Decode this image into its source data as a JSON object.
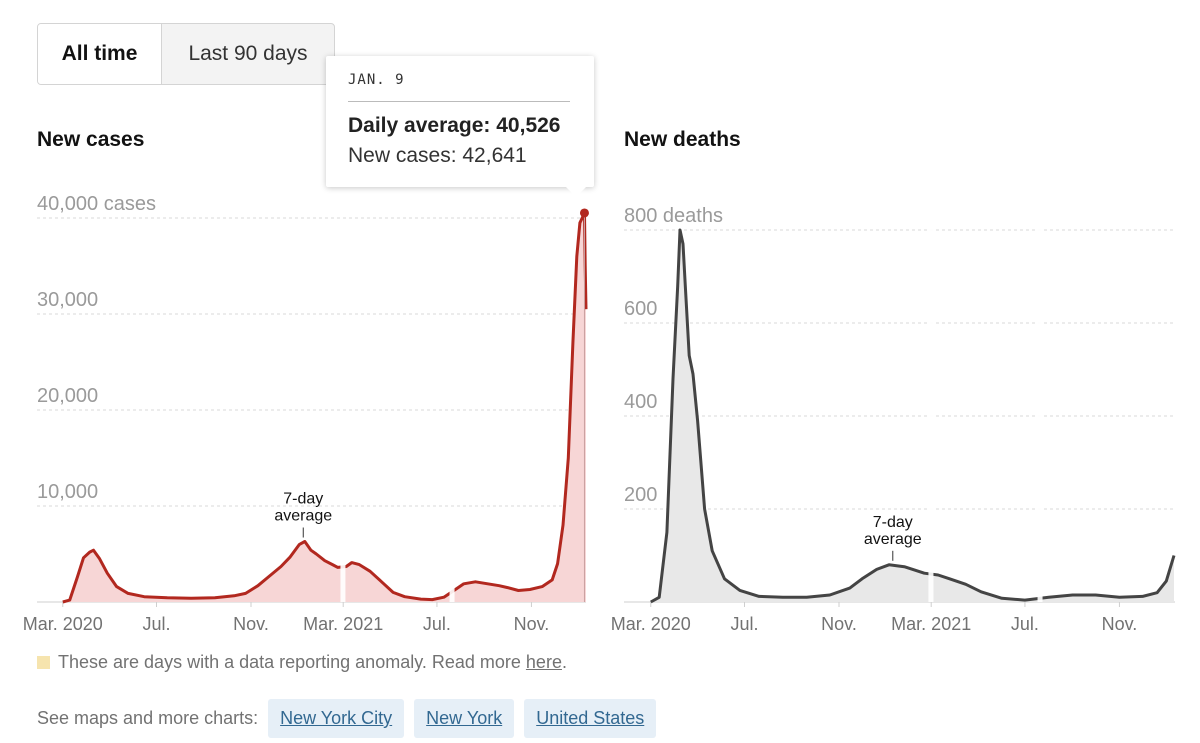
{
  "toggle": {
    "all_time": "All time",
    "last_90": "Last 90 days"
  },
  "tooltip": {
    "date": "JAN. 9",
    "daily_avg": "Daily average: 40,526",
    "new_cases": "New cases: 42,641"
  },
  "note": {
    "text": "These are days with a data reporting anomaly. Read more",
    "link": "here",
    "end": "."
  },
  "more": {
    "label": "See maps and more charts:",
    "links": [
      "New York City",
      "New York",
      "United States"
    ]
  },
  "annotation": {
    "line1": "7-day",
    "line2": "average"
  },
  "colors": {
    "cases_line": "#b2281f",
    "cases_fill": "#f7d6d6",
    "deaths_line": "#444444",
    "deaths_fill": "#e8e8e8",
    "anomaly": "#f6e4ae"
  },
  "chart_data": [
    {
      "type": "area",
      "title": "New cases",
      "y_unit_label": "40,000 cases",
      "yticks": [
        10000,
        20000,
        30000,
        40000
      ],
      "ytick_labels": [
        "10,000",
        "20,000",
        "30,000",
        "40,000 cases"
      ],
      "ylim": [
        0,
        40000
      ],
      "x_range": [
        "2020-02-29",
        "2022-01-11"
      ],
      "xticks": [
        {
          "date": "2020-03-01",
          "label": "Mar. 2020"
        },
        {
          "date": "2020-07-01",
          "label": "Jul."
        },
        {
          "date": "2020-11-01",
          "label": "Nov."
        },
        {
          "date": "2021-03-01",
          "label": "Mar. 2021"
        },
        {
          "date": "2021-07-01",
          "label": "Jul."
        },
        {
          "date": "2021-11-01",
          "label": "Nov."
        }
      ],
      "highlight": {
        "date": "2022-01-09",
        "value": 40526
      },
      "series": [
        {
          "points": [
            [
              "2020-03-01",
              0
            ],
            [
              "2020-03-10",
              200
            ],
            [
              "2020-03-20",
              2600
            ],
            [
              "2020-03-28",
              4600
            ],
            [
              "2020-04-05",
              5200
            ],
            [
              "2020-04-10",
              5400
            ],
            [
              "2020-04-18",
              4500
            ],
            [
              "2020-04-28",
              3000
            ],
            [
              "2020-05-10",
              1600
            ],
            [
              "2020-05-25",
              900
            ],
            [
              "2020-06-15",
              550
            ],
            [
              "2020-07-15",
              450
            ],
            [
              "2020-08-15",
              400
            ],
            [
              "2020-09-15",
              450
            ],
            [
              "2020-10-10",
              650
            ],
            [
              "2020-10-25",
              900
            ],
            [
              "2020-11-10",
              1700
            ],
            [
              "2020-11-25",
              2700
            ],
            [
              "2020-12-10",
              3700
            ],
            [
              "2020-12-22",
              4700
            ],
            [
              "2021-01-03",
              6000
            ],
            [
              "2021-01-10",
              6300
            ],
            [
              "2021-01-18",
              5400
            ],
            [
              "2021-01-25",
              5000
            ],
            [
              "2021-02-05",
              4300
            ],
            [
              "2021-02-15",
              3900
            ],
            [
              "2021-02-22",
              3600
            ],
            [
              "2021-03-05",
              3700
            ],
            [
              "2021-03-12",
              4100
            ],
            [
              "2021-03-22",
              3900
            ],
            [
              "2021-04-05",
              3200
            ],
            [
              "2021-04-20",
              2100
            ],
            [
              "2021-05-05",
              1000
            ],
            [
              "2021-05-20",
              550
            ],
            [
              "2021-06-10",
              300
            ],
            [
              "2021-06-25",
              250
            ],
            [
              "2021-07-10",
              500
            ],
            [
              "2021-07-25",
              1300
            ],
            [
              "2021-08-05",
              1900
            ],
            [
              "2021-08-20",
              2100
            ],
            [
              "2021-09-05",
              1900
            ],
            [
              "2021-09-20",
              1700
            ],
            [
              "2021-10-01",
              1500
            ],
            [
              "2021-10-15",
              1200
            ],
            [
              "2021-10-30",
              1300
            ],
            [
              "2021-11-15",
              1600
            ],
            [
              "2021-11-28",
              2300
            ],
            [
              "2021-12-05",
              4000
            ],
            [
              "2021-12-12",
              8000
            ],
            [
              "2021-12-19",
              15000
            ],
            [
              "2021-12-25",
              27000
            ],
            [
              "2021-12-30",
              36000
            ],
            [
              "2022-01-03",
              39500
            ],
            [
              "2022-01-06",
              40000
            ],
            [
              "2022-01-09",
              40526
            ],
            [
              "2022-01-10",
              35000
            ],
            [
              "2022-01-11",
              30500
            ]
          ]
        }
      ]
    },
    {
      "type": "area",
      "title": "New deaths",
      "yticks": [
        200,
        400,
        600,
        800
      ],
      "ytick_labels": [
        "200",
        "400",
        "600",
        "800 deaths"
      ],
      "ylim": [
        0,
        800
      ],
      "x_range": [
        "2020-02-29",
        "2022-01-11"
      ],
      "xticks": [
        {
          "date": "2020-03-01",
          "label": "Mar. 2020"
        },
        {
          "date": "2020-07-01",
          "label": "Jul."
        },
        {
          "date": "2020-11-01",
          "label": "Nov."
        },
        {
          "date": "2021-03-01",
          "label": "Mar. 2021"
        },
        {
          "date": "2021-07-01",
          "label": "Jul."
        },
        {
          "date": "2021-11-01",
          "label": "Nov."
        }
      ],
      "series": [
        {
          "points": [
            [
              "2020-03-01",
              0
            ],
            [
              "2020-03-12",
              10
            ],
            [
              "2020-03-22",
              150
            ],
            [
              "2020-03-30",
              480
            ],
            [
              "2020-04-05",
              680
            ],
            [
              "2020-04-08",
              800
            ],
            [
              "2020-04-12",
              770
            ],
            [
              "2020-04-15",
              680
            ],
            [
              "2020-04-20",
              530
            ],
            [
              "2020-04-25",
              490
            ],
            [
              "2020-05-01",
              390
            ],
            [
              "2020-05-10",
              200
            ],
            [
              "2020-05-20",
              110
            ],
            [
              "2020-06-05",
              50
            ],
            [
              "2020-06-25",
              25
            ],
            [
              "2020-07-20",
              12
            ],
            [
              "2020-08-20",
              10
            ],
            [
              "2020-09-20",
              10
            ],
            [
              "2020-10-20",
              15
            ],
            [
              "2020-11-15",
              30
            ],
            [
              "2020-12-01",
              50
            ],
            [
              "2020-12-20",
              70
            ],
            [
              "2021-01-05",
              80
            ],
            [
              "2021-01-15",
              78
            ],
            [
              "2021-01-25",
              76
            ],
            [
              "2021-02-05",
              70
            ],
            [
              "2021-02-20",
              62
            ],
            [
              "2021-03-10",
              58
            ],
            [
              "2021-03-25",
              50
            ],
            [
              "2021-04-15",
              38
            ],
            [
              "2021-05-05",
              22
            ],
            [
              "2021-06-01",
              8
            ],
            [
              "2021-07-01",
              4
            ],
            [
              "2021-08-01",
              10
            ],
            [
              "2021-09-01",
              15
            ],
            [
              "2021-10-01",
              15
            ],
            [
              "2021-11-01",
              10
            ],
            [
              "2021-12-01",
              12
            ],
            [
              "2021-12-20",
              20
            ],
            [
              "2022-01-01",
              45
            ],
            [
              "2022-01-11",
              100
            ]
          ]
        }
      ]
    }
  ]
}
